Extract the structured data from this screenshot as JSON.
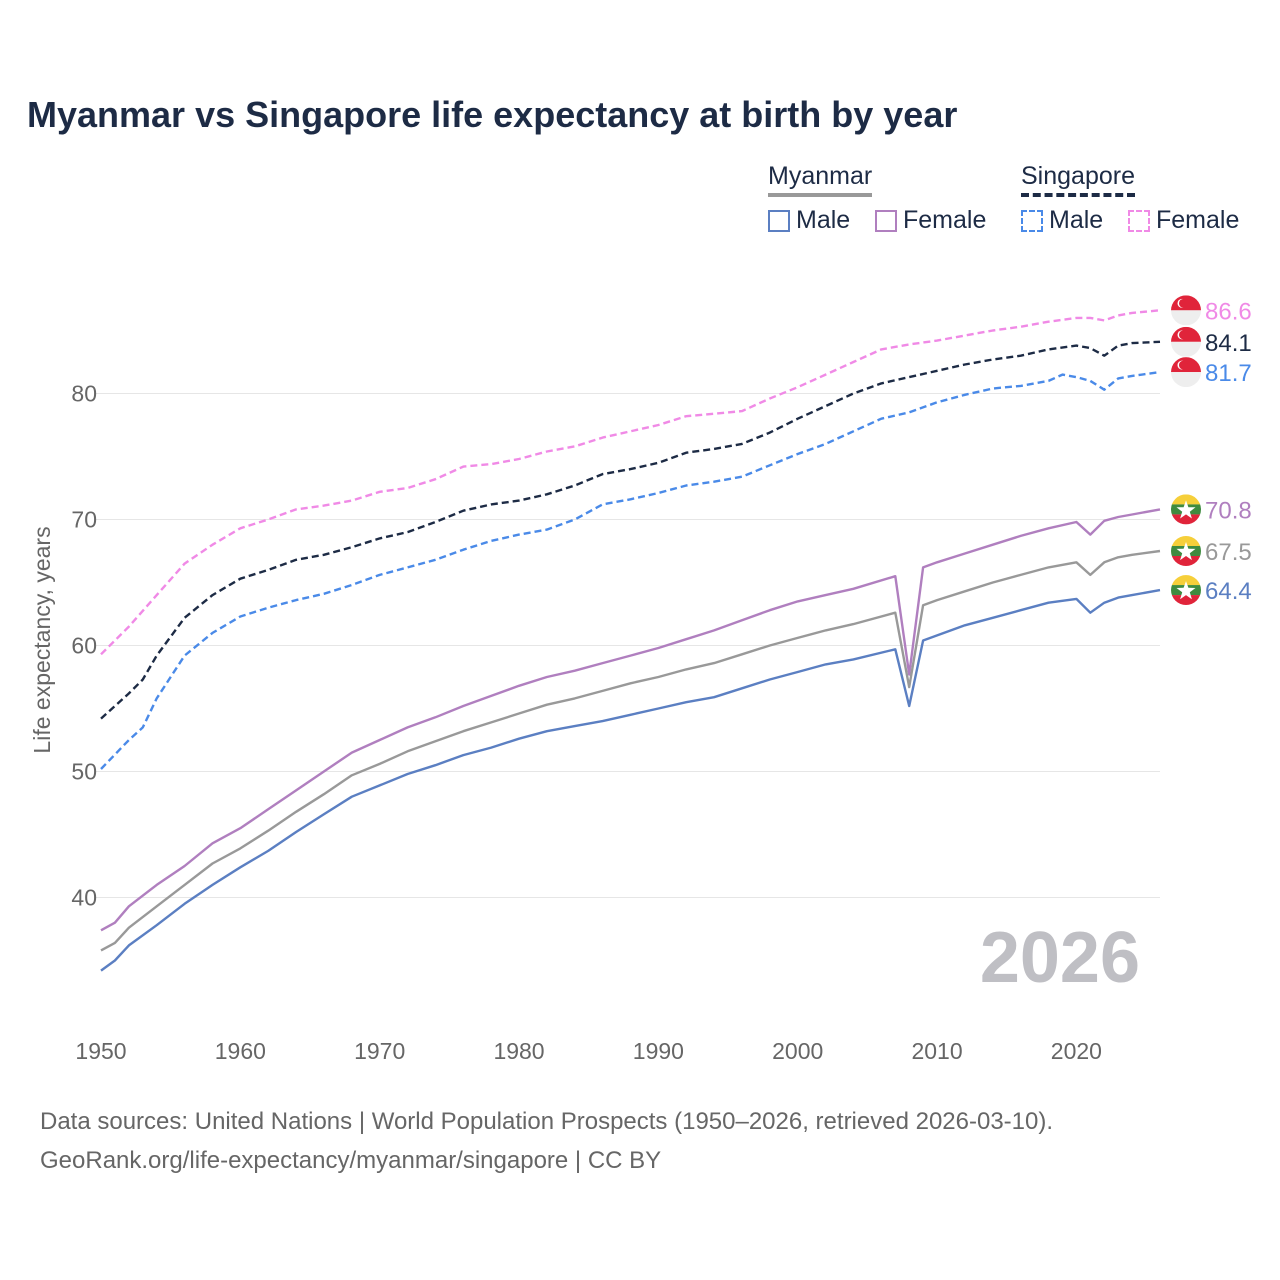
{
  "chart_data": {
    "type": "line",
    "title": "Myanmar vs Singapore life expectancy at birth by year",
    "xlabel": "",
    "ylabel": "Life expectancy, years",
    "xlim": [
      1950,
      2026
    ],
    "ylim": [
      31,
      90
    ],
    "yticks": [
      40,
      50,
      60,
      70,
      80
    ],
    "xticks": [
      1950,
      1960,
      1970,
      1980,
      1990,
      2000,
      2010,
      2020
    ],
    "watermark_year": "2026",
    "legend": {
      "groups": [
        {
          "name": "Myanmar",
          "line_style": "solid",
          "color": "#999999"
        },
        {
          "name": "Singapore",
          "line_style": "dashed",
          "color": "#1d2b45"
        }
      ],
      "items": [
        {
          "label": "Male",
          "group": "Myanmar",
          "color": "#5b7fc2",
          "style": "solid"
        },
        {
          "label": "Female",
          "group": "Myanmar",
          "color": "#b07fbf",
          "style": "solid"
        },
        {
          "label": "Male",
          "group": "Singapore",
          "color": "#4a8ae8",
          "style": "dashed"
        },
        {
          "label": "Female",
          "group": "Singapore",
          "color": "#f08ae6",
          "style": "dashed"
        }
      ]
    },
    "series": [
      {
        "name": "Singapore Female",
        "country": "Singapore",
        "color": "#f08ae6",
        "dash": true,
        "end_label": "86.6",
        "points": [
          [
            1950,
            59.3
          ],
          [
            1952,
            61.5
          ],
          [
            1954,
            64.0
          ],
          [
            1956,
            66.5
          ],
          [
            1958,
            68.0
          ],
          [
            1960,
            69.3
          ],
          [
            1962,
            70.0
          ],
          [
            1964,
            70.8
          ],
          [
            1966,
            71.1
          ],
          [
            1968,
            71.5
          ],
          [
            1970,
            72.2
          ],
          [
            1972,
            72.5
          ],
          [
            1974,
            73.2
          ],
          [
            1976,
            74.2
          ],
          [
            1978,
            74.4
          ],
          [
            1980,
            74.8
          ],
          [
            1982,
            75.4
          ],
          [
            1984,
            75.8
          ],
          [
            1986,
            76.5
          ],
          [
            1988,
            77.0
          ],
          [
            1990,
            77.5
          ],
          [
            1992,
            78.2
          ],
          [
            1994,
            78.4
          ],
          [
            1996,
            78.6
          ],
          [
            1998,
            79.6
          ],
          [
            2000,
            80.5
          ],
          [
            2002,
            81.5
          ],
          [
            2004,
            82.5
          ],
          [
            2006,
            83.5
          ],
          [
            2008,
            83.9
          ],
          [
            2010,
            84.2
          ],
          [
            2012,
            84.6
          ],
          [
            2014,
            85.0
          ],
          [
            2016,
            85.3
          ],
          [
            2018,
            85.7
          ],
          [
            2020,
            86.0
          ],
          [
            2021,
            86.0
          ],
          [
            2022,
            85.8
          ],
          [
            2023,
            86.2
          ],
          [
            2024,
            86.4
          ],
          [
            2026,
            86.6
          ]
        ]
      },
      {
        "name": "Singapore Total",
        "country": "Singapore",
        "color": "#1d2b45",
        "dash": true,
        "end_label": "84.1",
        "points": [
          [
            1950,
            54.2
          ],
          [
            1952,
            56.2
          ],
          [
            1953,
            57.3
          ],
          [
            1954,
            59.2
          ],
          [
            1956,
            62.2
          ],
          [
            1958,
            64.0
          ],
          [
            1960,
            65.3
          ],
          [
            1962,
            66.0
          ],
          [
            1964,
            66.8
          ],
          [
            1966,
            67.2
          ],
          [
            1968,
            67.8
          ],
          [
            1970,
            68.5
          ],
          [
            1972,
            69.0
          ],
          [
            1974,
            69.8
          ],
          [
            1976,
            70.7
          ],
          [
            1978,
            71.2
          ],
          [
            1980,
            71.5
          ],
          [
            1982,
            72.0
          ],
          [
            1984,
            72.7
          ],
          [
            1986,
            73.6
          ],
          [
            1988,
            74.0
          ],
          [
            1990,
            74.5
          ],
          [
            1992,
            75.3
          ],
          [
            1994,
            75.6
          ],
          [
            1996,
            76.0
          ],
          [
            1998,
            76.9
          ],
          [
            2000,
            78.0
          ],
          [
            2002,
            79.0
          ],
          [
            2004,
            80.0
          ],
          [
            2006,
            80.8
          ],
          [
            2008,
            81.3
          ],
          [
            2010,
            81.8
          ],
          [
            2012,
            82.3
          ],
          [
            2014,
            82.7
          ],
          [
            2016,
            83.0
          ],
          [
            2018,
            83.5
          ],
          [
            2020,
            83.8
          ],
          [
            2021,
            83.6
          ],
          [
            2022,
            83.0
          ],
          [
            2023,
            83.8
          ],
          [
            2024,
            84.0
          ],
          [
            2026,
            84.1
          ]
        ]
      },
      {
        "name": "Singapore Male",
        "country": "Singapore",
        "color": "#4a8ae8",
        "dash": true,
        "end_label": "81.7",
        "points": [
          [
            1950,
            50.2
          ],
          [
            1952,
            52.5
          ],
          [
            1953,
            53.5
          ],
          [
            1954,
            55.8
          ],
          [
            1956,
            59.2
          ],
          [
            1958,
            61.0
          ],
          [
            1960,
            62.3
          ],
          [
            1962,
            63.0
          ],
          [
            1964,
            63.6
          ],
          [
            1966,
            64.1
          ],
          [
            1968,
            64.8
          ],
          [
            1970,
            65.6
          ],
          [
            1972,
            66.2
          ],
          [
            1974,
            66.8
          ],
          [
            1976,
            67.6
          ],
          [
            1978,
            68.3
          ],
          [
            1980,
            68.8
          ],
          [
            1982,
            69.2
          ],
          [
            1984,
            70.0
          ],
          [
            1986,
            71.2
          ],
          [
            1988,
            71.6
          ],
          [
            1990,
            72.1
          ],
          [
            1992,
            72.7
          ],
          [
            1994,
            73.0
          ],
          [
            1996,
            73.4
          ],
          [
            1998,
            74.3
          ],
          [
            2000,
            75.2
          ],
          [
            2002,
            76.0
          ],
          [
            2004,
            77.0
          ],
          [
            2006,
            78.0
          ],
          [
            2008,
            78.5
          ],
          [
            2010,
            79.3
          ],
          [
            2012,
            79.9
          ],
          [
            2014,
            80.4
          ],
          [
            2016,
            80.6
          ],
          [
            2018,
            81.0
          ],
          [
            2019,
            81.5
          ],
          [
            2020,
            81.3
          ],
          [
            2021,
            81.0
          ],
          [
            2022,
            80.3
          ],
          [
            2023,
            81.2
          ],
          [
            2024,
            81.4
          ],
          [
            2026,
            81.7
          ]
        ]
      },
      {
        "name": "Myanmar Female",
        "country": "Myanmar",
        "color": "#b07fbf",
        "dash": false,
        "end_label": "70.8",
        "points": [
          [
            1950,
            37.4
          ],
          [
            1951,
            38.0
          ],
          [
            1952,
            39.3
          ],
          [
            1954,
            41.0
          ],
          [
            1956,
            42.5
          ],
          [
            1958,
            44.3
          ],
          [
            1960,
            45.5
          ],
          [
            1962,
            47.0
          ],
          [
            1964,
            48.5
          ],
          [
            1966,
            50.0
          ],
          [
            1968,
            51.5
          ],
          [
            1970,
            52.5
          ],
          [
            1972,
            53.5
          ],
          [
            1974,
            54.3
          ],
          [
            1976,
            55.2
          ],
          [
            1978,
            56.0
          ],
          [
            1980,
            56.8
          ],
          [
            1982,
            57.5
          ],
          [
            1984,
            58.0
          ],
          [
            1986,
            58.6
          ],
          [
            1988,
            59.2
          ],
          [
            1990,
            59.8
          ],
          [
            1992,
            60.5
          ],
          [
            1994,
            61.2
          ],
          [
            1996,
            62.0
          ],
          [
            1998,
            62.8
          ],
          [
            2000,
            63.5
          ],
          [
            2002,
            64.0
          ],
          [
            2004,
            64.5
          ],
          [
            2007,
            65.5
          ],
          [
            2008,
            57.7
          ],
          [
            2009,
            66.2
          ],
          [
            2010,
            66.6
          ],
          [
            2012,
            67.3
          ],
          [
            2014,
            68.0
          ],
          [
            2016,
            68.7
          ],
          [
            2018,
            69.3
          ],
          [
            2020,
            69.8
          ],
          [
            2021,
            68.8
          ],
          [
            2022,
            69.9
          ],
          [
            2023,
            70.2
          ],
          [
            2024,
            70.4
          ],
          [
            2026,
            70.8
          ]
        ]
      },
      {
        "name": "Myanmar Total",
        "country": "Myanmar",
        "color": "#999999",
        "dash": false,
        "end_label": "67.5",
        "points": [
          [
            1950,
            35.8
          ],
          [
            1951,
            36.4
          ],
          [
            1952,
            37.6
          ],
          [
            1954,
            39.3
          ],
          [
            1956,
            41.0
          ],
          [
            1958,
            42.7
          ],
          [
            1960,
            43.9
          ],
          [
            1962,
            45.3
          ],
          [
            1964,
            46.8
          ],
          [
            1966,
            48.2
          ],
          [
            1968,
            49.7
          ],
          [
            1970,
            50.6
          ],
          [
            1972,
            51.6
          ],
          [
            1974,
            52.4
          ],
          [
            1976,
            53.2
          ],
          [
            1978,
            53.9
          ],
          [
            1980,
            54.6
          ],
          [
            1982,
            55.3
          ],
          [
            1984,
            55.8
          ],
          [
            1986,
            56.4
          ],
          [
            1988,
            57.0
          ],
          [
            1990,
            57.5
          ],
          [
            1992,
            58.1
          ],
          [
            1994,
            58.6
          ],
          [
            1996,
            59.3
          ],
          [
            1998,
            60.0
          ],
          [
            2000,
            60.6
          ],
          [
            2002,
            61.2
          ],
          [
            2004,
            61.7
          ],
          [
            2007,
            62.6
          ],
          [
            2008,
            56.7
          ],
          [
            2009,
            63.2
          ],
          [
            2010,
            63.6
          ],
          [
            2012,
            64.3
          ],
          [
            2014,
            65.0
          ],
          [
            2016,
            65.6
          ],
          [
            2018,
            66.2
          ],
          [
            2020,
            66.6
          ],
          [
            2021,
            65.6
          ],
          [
            2022,
            66.6
          ],
          [
            2023,
            67.0
          ],
          [
            2024,
            67.2
          ],
          [
            2026,
            67.5
          ]
        ]
      },
      {
        "name": "Myanmar Male",
        "country": "Myanmar",
        "color": "#5b7fc2",
        "dash": false,
        "end_label": "64.4",
        "points": [
          [
            1950,
            34.2
          ],
          [
            1951,
            35.0
          ],
          [
            1952,
            36.2
          ],
          [
            1954,
            37.8
          ],
          [
            1956,
            39.5
          ],
          [
            1958,
            41.0
          ],
          [
            1960,
            42.4
          ],
          [
            1962,
            43.7
          ],
          [
            1964,
            45.2
          ],
          [
            1966,
            46.6
          ],
          [
            1968,
            48.0
          ],
          [
            1970,
            48.9
          ],
          [
            1972,
            49.8
          ],
          [
            1974,
            50.5
          ],
          [
            1976,
            51.3
          ],
          [
            1978,
            51.9
          ],
          [
            1980,
            52.6
          ],
          [
            1982,
            53.2
          ],
          [
            1984,
            53.6
          ],
          [
            1986,
            54.0
          ],
          [
            1988,
            54.5
          ],
          [
            1990,
            55.0
          ],
          [
            1992,
            55.5
          ],
          [
            1994,
            55.9
          ],
          [
            1996,
            56.6
          ],
          [
            1998,
            57.3
          ],
          [
            2000,
            57.9
          ],
          [
            2002,
            58.5
          ],
          [
            2004,
            58.9
          ],
          [
            2007,
            59.7
          ],
          [
            2008,
            55.2
          ],
          [
            2009,
            60.4
          ],
          [
            2010,
            60.8
          ],
          [
            2012,
            61.6
          ],
          [
            2014,
            62.2
          ],
          [
            2016,
            62.8
          ],
          [
            2018,
            63.4
          ],
          [
            2020,
            63.7
          ],
          [
            2021,
            62.6
          ],
          [
            2022,
            63.4
          ],
          [
            2023,
            63.8
          ],
          [
            2024,
            64.0
          ],
          [
            2026,
            64.4
          ]
        ]
      }
    ]
  },
  "sources": {
    "line1": "Data sources: United Nations | World Population Prospects (1950–2026, retrieved 2026-03-10).",
    "line2": "GeoRank.org/life-expectancy/myanmar/singapore | CC BY"
  }
}
